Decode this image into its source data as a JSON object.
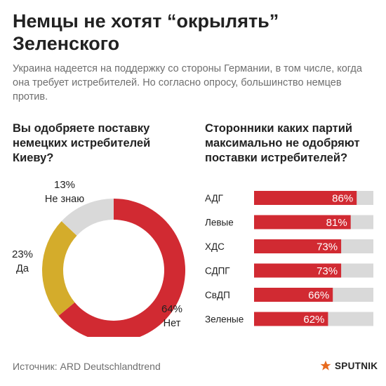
{
  "title": "Немцы не хотят “окрылять” Зеленского",
  "subtitle": "Украина надеется на поддержку со стороны Германии, в том числе, когда она требует истребителей. Но согласно опросу, большинство немцев против.",
  "left_question": "Вы одобряете поставку немецких истребителей Киеву?",
  "right_question": "Сторонники каких партий максимально не одобряют поставки истребителей?",
  "source": "Источник: ARD Deutschlandtrend",
  "brand": {
    "name": "SPUTNIK",
    "icon": "sputnik-logo-icon"
  },
  "colors": {
    "red": "#d12a32",
    "gold": "#d4ac2b",
    "gray": "#d9d9d9",
    "text": "#222222",
    "muted": "#6e6e6e"
  },
  "chart_data": [
    {
      "type": "pie",
      "title": "Вы одобряете поставку немецких истребителей Киеву?",
      "slices": [
        {
          "label": "Нет",
          "value": 64,
          "display": "64%",
          "color": "#d12a32"
        },
        {
          "label": "Да",
          "value": 23,
          "display": "23%",
          "color": "#d4ac2b"
        },
        {
          "label": "Не знаю",
          "value": 13,
          "display": "13%",
          "color": "#d9d9d9"
        }
      ]
    },
    {
      "type": "bar",
      "orientation": "horizontal",
      "title": "Сторонники каких партий максимально не одобряют поставки истребителей?",
      "categories": [
        "АДГ",
        "Левые",
        "ХДС",
        "СДПГ",
        "СвДП",
        "Зеленые"
      ],
      "values": [
        86,
        81,
        73,
        73,
        66,
        62
      ],
      "labels": [
        "86%",
        "81%",
        "73%",
        "73%",
        "66%",
        "62%"
      ],
      "xlim": [
        0,
        100
      ],
      "bar_color": "#d12a32",
      "track_color": "#d9d9d9"
    }
  ]
}
